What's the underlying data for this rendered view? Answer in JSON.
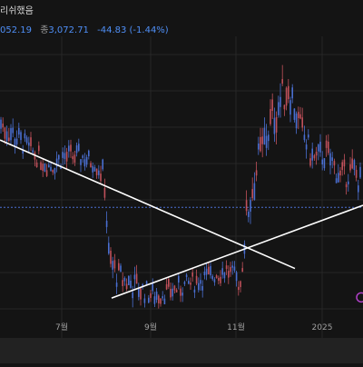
{
  "header": {
    "title": "리쉬했음",
    "prev_close": "052.19",
    "last_label": "종",
    "last_price": "3,072.71",
    "change": "-44.83 (-1.44%)"
  },
  "chart_data": {
    "type": "candlestick",
    "x_ticks": [
      "7월",
      "9월",
      "11월",
      "2025"
    ],
    "ylim": [
      2320,
      3140
    ],
    "grid": true,
    "colors": {
      "up": "#c0505a",
      "down": "#4a6fd1",
      "background": "#141414",
      "grid": "#262626",
      "trendline": "#ffffff",
      "ref_line": "#4a6fd1"
    },
    "reference_level": 2642,
    "bands": [
      {
        "x": 1,
        "level": 2885,
        "range": 90
      },
      {
        "x": 35,
        "level": 2805,
        "range": 60
      },
      {
        "x": 55,
        "level": 2760,
        "range": 60
      },
      {
        "x": 70,
        "level": 2790,
        "range": 70
      },
      {
        "x": 90,
        "level": 2790,
        "range": 60
      },
      {
        "x": 105,
        "level": 2770,
        "range": 50
      },
      {
        "x": 115,
        "level": 2730,
        "range": 80
      },
      {
        "x": 120,
        "level": 2490,
        "range": 90
      },
      {
        "x": 130,
        "level": 2440,
        "range": 80
      },
      {
        "x": 150,
        "level": 2410,
        "range": 80
      },
      {
        "x": 170,
        "level": 2385,
        "range": 60
      },
      {
        "x": 190,
        "level": 2400,
        "range": 60
      },
      {
        "x": 210,
        "level": 2420,
        "range": 60
      },
      {
        "x": 230,
        "level": 2440,
        "range": 60
      },
      {
        "x": 250,
        "level": 2460,
        "range": 60
      },
      {
        "x": 265,
        "level": 2420,
        "range": 60
      },
      {
        "x": 272,
        "level": 2620,
        "range": 110
      },
      {
        "x": 285,
        "level": 2780,
        "range": 110
      },
      {
        "x": 300,
        "level": 2900,
        "range": 120
      },
      {
        "x": 318,
        "level": 3000,
        "range": 120
      },
      {
        "x": 330,
        "level": 2880,
        "range": 90
      },
      {
        "x": 345,
        "level": 2780,
        "range": 80
      },
      {
        "x": 360,
        "level": 2800,
        "range": 80
      },
      {
        "x": 375,
        "level": 2730,
        "range": 80
      },
      {
        "x": 390,
        "level": 2750,
        "range": 80
      },
      {
        "x": 400,
        "level": 2700,
        "range": 80
      }
    ],
    "trendlines": [
      {
        "from": [
          0,
          2838
        ],
        "to": [
          325,
          2464
        ]
      },
      {
        "from": [
          123,
          2378
        ],
        "to": [
          400,
          2648
        ]
      }
    ],
    "markers": [
      {
        "type": "circle",
        "x": 400,
        "y": 2380
      }
    ]
  }
}
